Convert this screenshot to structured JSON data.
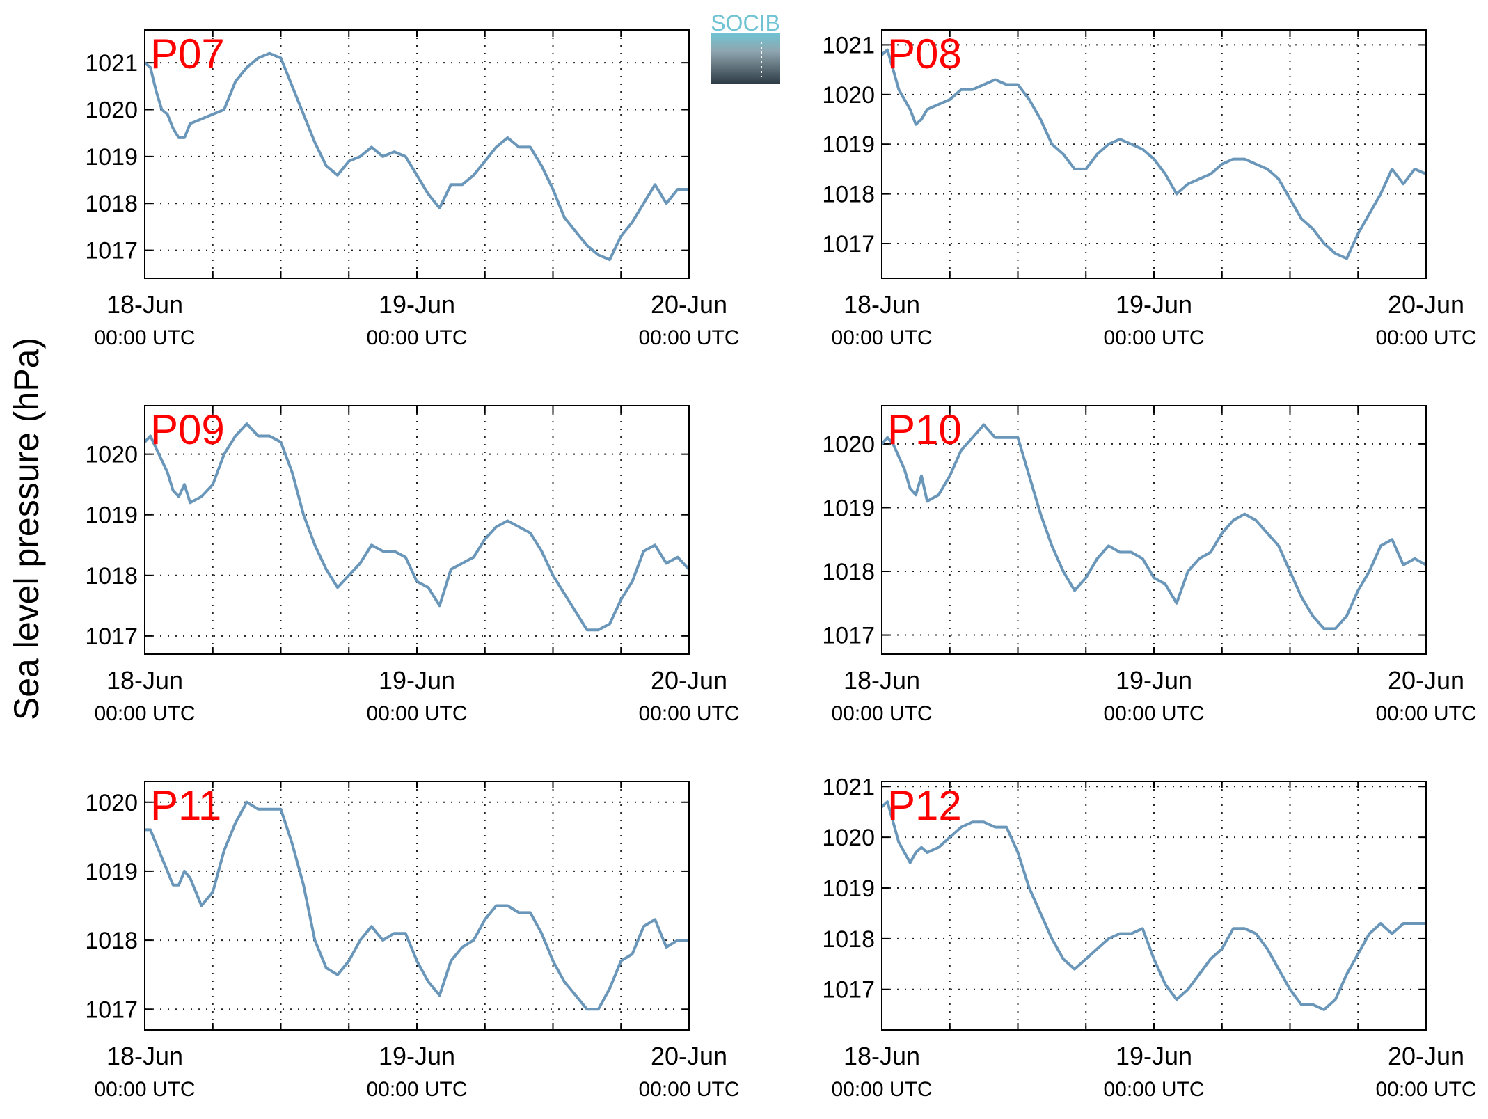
{
  "ylabel": "Sea level pressure (hPa)",
  "logo": {
    "text": "SOCIB",
    "color_top": "#6fc3d3",
    "color_bottom": "#2f3c46"
  },
  "line_color": "#6a97b9",
  "panel_label_color": "#ff0000",
  "x_ticks": [
    {
      "hours": 0,
      "date": "18-Jun",
      "time": "00:00 UTC"
    },
    {
      "hours": 24,
      "date": "19-Jun",
      "time": "00:00 UTC"
    },
    {
      "hours": 48,
      "date": "20-Jun",
      "time": "00:00 UTC"
    }
  ],
  "chart_data": [
    {
      "type": "line",
      "title": "P07",
      "xlim": [
        0,
        48
      ],
      "ylim": [
        1016.4,
        1021.7
      ],
      "yticks": [
        1017,
        1018,
        1019,
        1020,
        1021
      ],
      "x": [
        0,
        0.5,
        1,
        1.5,
        2,
        2.5,
        3,
        3.5,
        4,
        5,
        6,
        7,
        8,
        9,
        10,
        11,
        12,
        13,
        14,
        15,
        16,
        17,
        18,
        19,
        20,
        21,
        22,
        23,
        24,
        25,
        26,
        27,
        28,
        29,
        30,
        31,
        32,
        33,
        34,
        35,
        36,
        37,
        38,
        39,
        40,
        41,
        42,
        43,
        44,
        45,
        46,
        47,
        48
      ],
      "values": [
        1021.0,
        1020.9,
        1020.4,
        1020.0,
        1019.9,
        1019.6,
        1019.4,
        1019.4,
        1019.7,
        1019.8,
        1019.9,
        1020.0,
        1020.6,
        1020.9,
        1021.1,
        1021.2,
        1021.1,
        1020.5,
        1019.9,
        1019.3,
        1018.8,
        1018.6,
        1018.9,
        1019.0,
        1019.2,
        1019.0,
        1019.1,
        1019.0,
        1018.6,
        1018.2,
        1017.9,
        1018.4,
        1018.4,
        1018.6,
        1018.9,
        1019.2,
        1019.4,
        1019.2,
        1019.2,
        1018.8,
        1018.3,
        1017.7,
        1017.4,
        1017.1,
        1016.9,
        1016.8,
        1017.3,
        1017.6,
        1018.0,
        1018.4,
        1018.0,
        1018.3,
        1018.3
      ]
    },
    {
      "type": "line",
      "title": "P08",
      "xlim": [
        0,
        48
      ],
      "ylim": [
        1016.3,
        1021.3
      ],
      "yticks": [
        1017,
        1018,
        1019,
        1020,
        1021
      ],
      "x": [
        0,
        0.5,
        1,
        1.5,
        2,
        2.5,
        3,
        3.5,
        4,
        5,
        6,
        7,
        8,
        9,
        10,
        11,
        12,
        13,
        14,
        15,
        16,
        17,
        18,
        19,
        20,
        21,
        22,
        23,
        24,
        25,
        26,
        27,
        28,
        29,
        30,
        31,
        32,
        33,
        34,
        35,
        36,
        37,
        38,
        39,
        40,
        41,
        42,
        43,
        44,
        45,
        46,
        47,
        48
      ],
      "values": [
        1020.8,
        1020.9,
        1020.5,
        1020.1,
        1019.9,
        1019.7,
        1019.4,
        1019.5,
        1019.7,
        1019.8,
        1019.9,
        1020.1,
        1020.1,
        1020.2,
        1020.3,
        1020.2,
        1020.2,
        1019.9,
        1019.5,
        1019.0,
        1018.8,
        1018.5,
        1018.5,
        1018.8,
        1019.0,
        1019.1,
        1019.0,
        1018.9,
        1018.7,
        1018.4,
        1018.0,
        1018.2,
        1018.3,
        1018.4,
        1018.6,
        1018.7,
        1018.7,
        1018.6,
        1018.5,
        1018.3,
        1017.9,
        1017.5,
        1017.3,
        1017.0,
        1016.8,
        1016.7,
        1017.2,
        1017.6,
        1018.0,
        1018.5,
        1018.2,
        1018.5,
        1018.4
      ]
    },
    {
      "type": "line",
      "title": "P09",
      "xlim": [
        0,
        48
      ],
      "ylim": [
        1016.7,
        1020.8
      ],
      "yticks": [
        1017,
        1018,
        1019,
        1020
      ],
      "x": [
        0,
        0.5,
        1,
        1.5,
        2,
        2.5,
        3,
        3.5,
        4,
        5,
        6,
        7,
        8,
        9,
        10,
        11,
        12,
        13,
        14,
        15,
        16,
        17,
        18,
        19,
        20,
        21,
        22,
        23,
        24,
        25,
        26,
        27,
        28,
        29,
        30,
        31,
        32,
        33,
        34,
        35,
        36,
        37,
        38,
        39,
        40,
        41,
        42,
        43,
        44,
        45,
        46,
        47,
        48
      ],
      "values": [
        1020.2,
        1020.3,
        1020.1,
        1019.9,
        1019.7,
        1019.4,
        1019.3,
        1019.5,
        1019.2,
        1019.3,
        1019.5,
        1020.0,
        1020.3,
        1020.5,
        1020.3,
        1020.3,
        1020.2,
        1019.7,
        1019.0,
        1018.5,
        1018.1,
        1017.8,
        1018.0,
        1018.2,
        1018.5,
        1018.4,
        1018.4,
        1018.3,
        1017.9,
        1017.8,
        1017.5,
        1018.1,
        1018.2,
        1018.3,
        1018.6,
        1018.8,
        1018.9,
        1018.8,
        1018.7,
        1018.4,
        1018.0,
        1017.7,
        1017.4,
        1017.1,
        1017.1,
        1017.2,
        1017.6,
        1017.9,
        1018.4,
        1018.5,
        1018.2,
        1018.3,
        1018.1
      ]
    },
    {
      "type": "line",
      "title": "P10",
      "xlim": [
        0,
        48
      ],
      "ylim": [
        1016.7,
        1020.6
      ],
      "yticks": [
        1017,
        1018,
        1019,
        1020
      ],
      "x": [
        0,
        0.5,
        1,
        1.5,
        2,
        2.5,
        3,
        3.5,
        4,
        5,
        6,
        7,
        8,
        9,
        10,
        11,
        12,
        13,
        14,
        15,
        16,
        17,
        18,
        19,
        20,
        21,
        22,
        23,
        24,
        25,
        26,
        27,
        28,
        29,
        30,
        31,
        32,
        33,
        34,
        35,
        36,
        37,
        38,
        39,
        40,
        41,
        42,
        43,
        44,
        45,
        46,
        47,
        48
      ],
      "values": [
        1020.0,
        1020.1,
        1020.0,
        1019.8,
        1019.6,
        1019.3,
        1019.2,
        1019.5,
        1019.1,
        1019.2,
        1019.5,
        1019.9,
        1020.1,
        1020.3,
        1020.1,
        1020.1,
        1020.1,
        1019.5,
        1018.9,
        1018.4,
        1018.0,
        1017.7,
        1017.9,
        1018.2,
        1018.4,
        1018.3,
        1018.3,
        1018.2,
        1017.9,
        1017.8,
        1017.5,
        1018.0,
        1018.2,
        1018.3,
        1018.6,
        1018.8,
        1018.9,
        1018.8,
        1018.6,
        1018.4,
        1018.0,
        1017.6,
        1017.3,
        1017.1,
        1017.1,
        1017.3,
        1017.7,
        1018.0,
        1018.4,
        1018.5,
        1018.1,
        1018.2,
        1018.1
      ]
    },
    {
      "type": "line",
      "title": "P11",
      "xlim": [
        0,
        48
      ],
      "ylim": [
        1016.7,
        1020.3
      ],
      "yticks": [
        1017,
        1018,
        1019,
        1020
      ],
      "x": [
        0,
        0.5,
        1,
        1.5,
        2,
        2.5,
        3,
        3.5,
        4,
        5,
        6,
        7,
        8,
        9,
        10,
        11,
        12,
        13,
        14,
        15,
        16,
        17,
        18,
        19,
        20,
        21,
        22,
        23,
        24,
        25,
        26,
        27,
        28,
        29,
        30,
        31,
        32,
        33,
        34,
        35,
        36,
        37,
        38,
        39,
        40,
        41,
        42,
        43,
        44,
        45,
        46,
        47,
        48
      ],
      "values": [
        1019.6,
        1019.6,
        1019.4,
        1019.2,
        1019.0,
        1018.8,
        1018.8,
        1019.0,
        1018.9,
        1018.5,
        1018.7,
        1019.3,
        1019.7,
        1020.0,
        1019.9,
        1019.9,
        1019.9,
        1019.4,
        1018.8,
        1018.0,
        1017.6,
        1017.5,
        1017.7,
        1018.0,
        1018.2,
        1018.0,
        1018.1,
        1018.1,
        1017.7,
        1017.4,
        1017.2,
        1017.7,
        1017.9,
        1018.0,
        1018.3,
        1018.5,
        1018.5,
        1018.4,
        1018.4,
        1018.1,
        1017.7,
        1017.4,
        1017.2,
        1017.0,
        1017.0,
        1017.3,
        1017.7,
        1017.8,
        1018.2,
        1018.3,
        1017.9,
        1018.0,
        1018.0
      ]
    },
    {
      "type": "line",
      "title": "P12",
      "xlim": [
        0,
        48
      ],
      "ylim": [
        1016.2,
        1021.1
      ],
      "yticks": [
        1017,
        1018,
        1019,
        1020,
        1021
      ],
      "x": [
        0,
        0.5,
        1,
        1.5,
        2,
        2.5,
        3,
        3.5,
        4,
        5,
        6,
        7,
        8,
        9,
        10,
        11,
        12,
        13,
        14,
        15,
        16,
        17,
        18,
        19,
        20,
        21,
        22,
        23,
        24,
        25,
        26,
        27,
        28,
        29,
        30,
        31,
        32,
        33,
        34,
        35,
        36,
        37,
        38,
        39,
        40,
        41,
        42,
        43,
        44,
        45,
        46,
        47,
        48
      ],
      "values": [
        1020.6,
        1020.7,
        1020.3,
        1019.9,
        1019.7,
        1019.5,
        1019.7,
        1019.8,
        1019.7,
        1019.8,
        1020.0,
        1020.2,
        1020.3,
        1020.3,
        1020.2,
        1020.2,
        1019.7,
        1019.0,
        1018.5,
        1018.0,
        1017.6,
        1017.4,
        1017.6,
        1017.8,
        1018.0,
        1018.1,
        1018.1,
        1018.2,
        1017.6,
        1017.1,
        1016.8,
        1017.0,
        1017.3,
        1017.6,
        1017.8,
        1018.2,
        1018.2,
        1018.1,
        1017.8,
        1017.4,
        1017.0,
        1016.7,
        1016.7,
        1016.6,
        1016.8,
        1017.3,
        1017.7,
        1018.1,
        1018.3,
        1018.1,
        1018.3,
        1018.3,
        1018.3
      ]
    }
  ]
}
